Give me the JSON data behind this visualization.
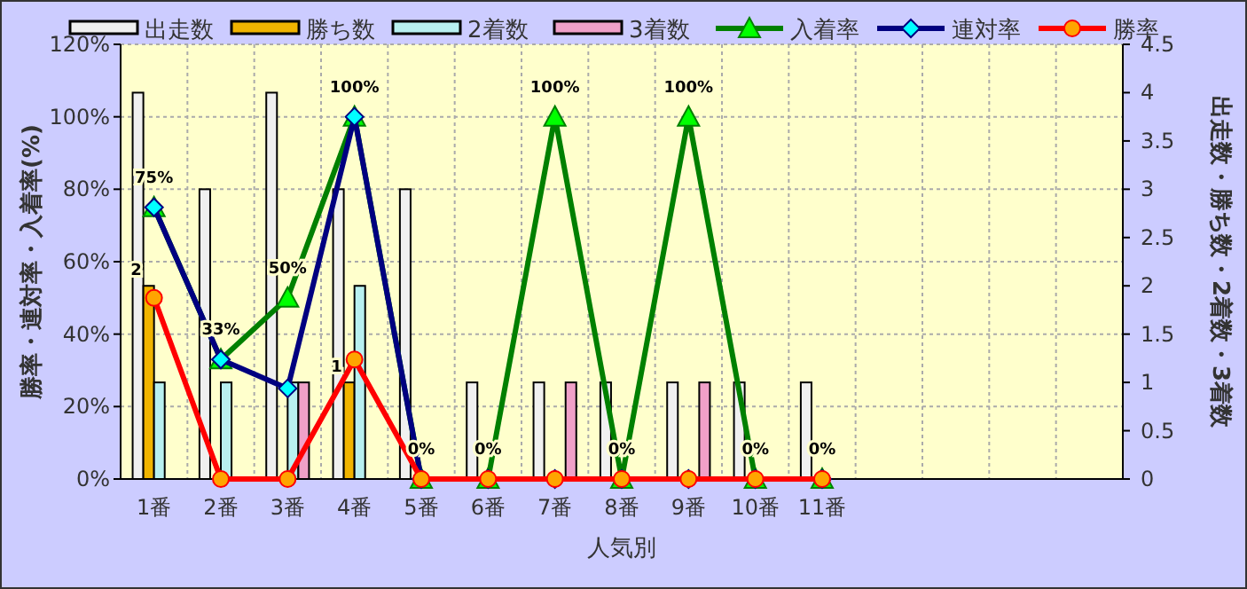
{
  "chart_data": {
    "type": "bar",
    "xlabel": "人気別",
    "ylabel": "勝率・連対率・入着率(%)",
    "y2label": "出走数・勝ち数・2着数・3着数",
    "categories": [
      "1番",
      "2番",
      "3番",
      "4番",
      "5番",
      "6番",
      "7番",
      "8番",
      "9番",
      "10番",
      "11番",
      null,
      null,
      null,
      null
    ],
    "series": [
      {
        "name": "出走数",
        "axis": "y2",
        "color": "#f0f0f0",
        "values": [
          4,
          3,
          4,
          3,
          3,
          1,
          1,
          1,
          1,
          1,
          1,
          null,
          null,
          null,
          null
        ]
      },
      {
        "name": "勝ち数",
        "axis": "y2",
        "color": "#f0b400",
        "values": [
          2,
          0,
          0,
          1,
          0,
          0,
          0,
          0,
          0,
          0,
          0,
          null,
          null,
          null,
          null
        ],
        "value_labels": [
          "2",
          null,
          null,
          "1",
          null,
          null,
          null,
          null,
          null,
          null,
          null,
          null,
          null,
          null,
          null
        ]
      },
      {
        "name": "2着数",
        "axis": "y2",
        "color": "#b8f0f0",
        "values": [
          1,
          1,
          1,
          2,
          0,
          0,
          0,
          0,
          0,
          0,
          0,
          null,
          null,
          null,
          null
        ]
      },
      {
        "name": "3着数",
        "axis": "y2",
        "color": "#f0a0c8",
        "values": [
          0,
          0,
          1,
          0,
          0,
          0,
          1,
          0,
          1,
          0,
          0,
          null,
          null,
          null,
          null
        ]
      },
      {
        "name": "入着率",
        "type": "line",
        "axis": "y",
        "color": "#008000",
        "marker": "triangle",
        "values": [
          75,
          33,
          50,
          100,
          0,
          0,
          100,
          0,
          100,
          0,
          0,
          null,
          null,
          null,
          null
        ],
        "value_labels": [
          "75%",
          "33%",
          "50%",
          "100%",
          "0%",
          "0%",
          "100%",
          "0%",
          "100%",
          "0%",
          "0%",
          null,
          null,
          null,
          null
        ]
      },
      {
        "name": "連対率",
        "type": "line",
        "axis": "y",
        "color": "#000080",
        "marker": "diamond",
        "values": [
          75,
          33,
          25,
          100,
          0,
          0,
          0,
          0,
          0,
          0,
          0,
          null,
          null,
          null,
          null
        ]
      },
      {
        "name": "勝率",
        "type": "line",
        "axis": "y",
        "color": "#ff0000",
        "marker": "circle",
        "values": [
          50,
          0,
          0,
          33,
          0,
          0,
          0,
          0,
          0,
          0,
          0,
          null,
          null,
          null,
          null
        ]
      }
    ],
    "ylim": [
      0,
      120
    ],
    "yticks": [
      {
        "value": 0,
        "label": "0%"
      },
      {
        "value": 20,
        "label": "20%"
      },
      {
        "value": 40,
        "label": "40%"
      },
      {
        "value": 60,
        "label": "60%"
      },
      {
        "value": 80,
        "label": "80%"
      },
      {
        "value": 100,
        "label": "100%"
      },
      {
        "value": 120,
        "label": "120%"
      }
    ],
    "y2lim": [
      0,
      4.5
    ],
    "y2ticks": [
      0,
      0.5,
      1,
      1.5,
      2,
      2.5,
      3,
      3.5,
      4,
      4.5
    ],
    "grid": true,
    "legend": "top"
  }
}
